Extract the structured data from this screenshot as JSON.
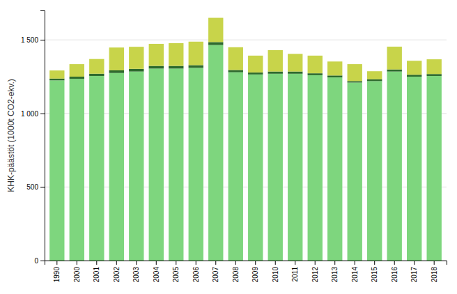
{
  "chart_data": {
    "type": "bar",
    "stacked": true,
    "grid": true,
    "y_label": "KHK-päästöt (1000t CO2-ekv.)",
    "categories": [
      "1990",
      "2000",
      "2001",
      "2002",
      "2003",
      "2004",
      "2005",
      "2006",
      "2007",
      "2008",
      "2009",
      "2010",
      "2011",
      "2012",
      "2013",
      "2014",
      "2015",
      "2016",
      "2017",
      "2018"
    ],
    "series": [
      {
        "color": "#7ED67E",
        "values": [
          1225,
          1235,
          1255,
          1275,
          1285,
          1305,
          1305,
          1310,
          1465,
          1280,
          1265,
          1270,
          1270,
          1260,
          1245,
          1210,
          1220,
          1285,
          1250,
          1255
        ]
      },
      {
        "color": "#2D6A2D",
        "values": [
          12,
          15,
          15,
          18,
          18,
          18,
          18,
          18,
          20,
          15,
          13,
          15,
          15,
          13,
          13,
          10,
          12,
          14,
          13,
          13
        ]
      },
      {
        "color": "#C8D44A",
        "values": [
          55,
          85,
          100,
          155,
          150,
          150,
          155,
          160,
          165,
          155,
          115,
          145,
          120,
          120,
          95,
          115,
          55,
          155,
          95,
          100
        ]
      }
    ],
    "ylim": [
      0,
      1700
    ],
    "yticks": [
      0,
      500,
      {
        "value": 1000,
        "label": "1 000"
      },
      {
        "value": 1500,
        "label": "1 500"
      }
    ]
  }
}
